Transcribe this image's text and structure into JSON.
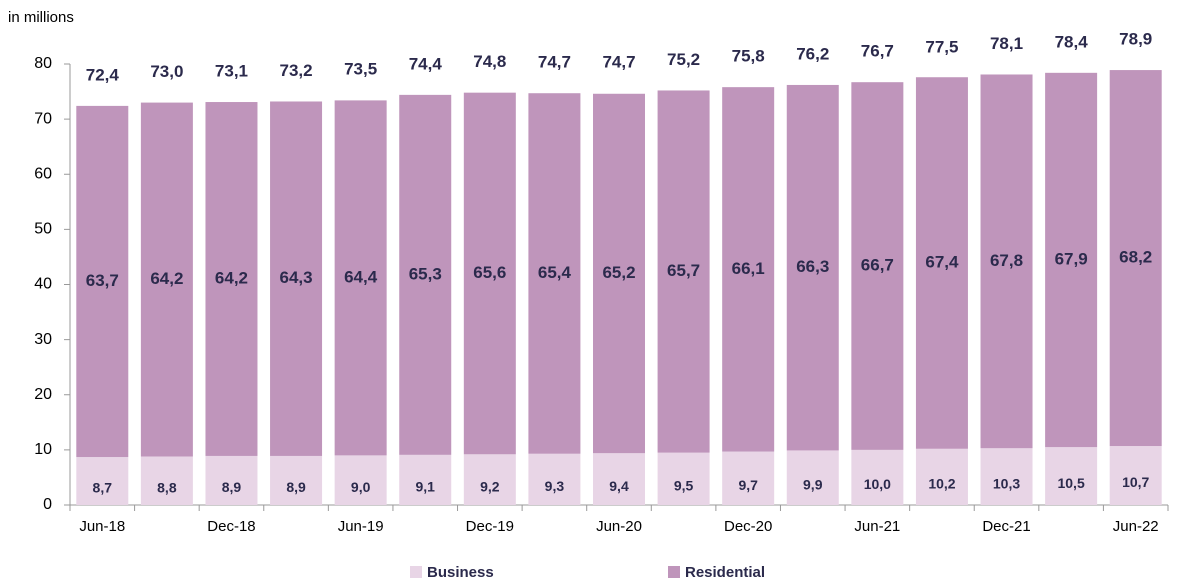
{
  "chart_data": {
    "type": "stacked_bar",
    "y_label": "in millions",
    "categories": [
      "Jun-18",
      null,
      "Dec-18",
      null,
      "Jun-19",
      null,
      "Dec-19",
      null,
      "Jun-20",
      null,
      "Dec-20",
      null,
      "Jun-21",
      null,
      "Dec-21",
      null,
      "Jun-22"
    ],
    "series": [
      {
        "name": "Business",
        "color": "#e8d5e6",
        "values": [
          8.7,
          8.8,
          8.9,
          8.9,
          9.0,
          9.1,
          9.2,
          9.3,
          9.4,
          9.5,
          9.7,
          9.9,
          10.0,
          10.2,
          10.3,
          10.5,
          10.7
        ],
        "value_labels": [
          "8,7",
          "8,8",
          "8,9",
          "8,9",
          "9,0",
          "9,1",
          "9,2",
          "9,3",
          "9,4",
          "9,5",
          "9,7",
          "9,9",
          "10,0",
          "10,2",
          "10,3",
          "10,5",
          "10,7"
        ]
      },
      {
        "name": "Residential",
        "color": "#bf95bb",
        "values": [
          63.7,
          64.2,
          64.2,
          64.3,
          64.4,
          65.3,
          65.6,
          65.4,
          65.2,
          65.7,
          66.1,
          66.3,
          66.7,
          67.4,
          67.8,
          67.9,
          68.2
        ],
        "value_labels": [
          "63,7",
          "64,2",
          "64,2",
          "64,3",
          "64,4",
          "65,3",
          "65,6",
          "65,4",
          "65,2",
          "65,7",
          "66,1",
          "66,3",
          "66,7",
          "67,4",
          "67,8",
          "67,9",
          "68,2"
        ]
      }
    ],
    "totals": [
      72.4,
      73.0,
      73.1,
      73.2,
      73.5,
      74.4,
      74.8,
      74.7,
      74.7,
      75.2,
      75.8,
      76.2,
      76.7,
      77.5,
      78.1,
      78.4,
      78.9
    ],
    "total_labels": [
      "72,4",
      "73,0",
      "73,1",
      "73,2",
      "73,5",
      "74,4",
      "74,8",
      "74,7",
      "74,7",
      "75,2",
      "75,8",
      "76,2",
      "76,7",
      "77,5",
      "78,1",
      "78,4",
      "78,9"
    ],
    "ylim": [
      0,
      80
    ],
    "yticks": [
      0,
      10,
      20,
      30,
      40,
      50,
      60,
      70,
      80
    ],
    "legend": "bottom"
  }
}
